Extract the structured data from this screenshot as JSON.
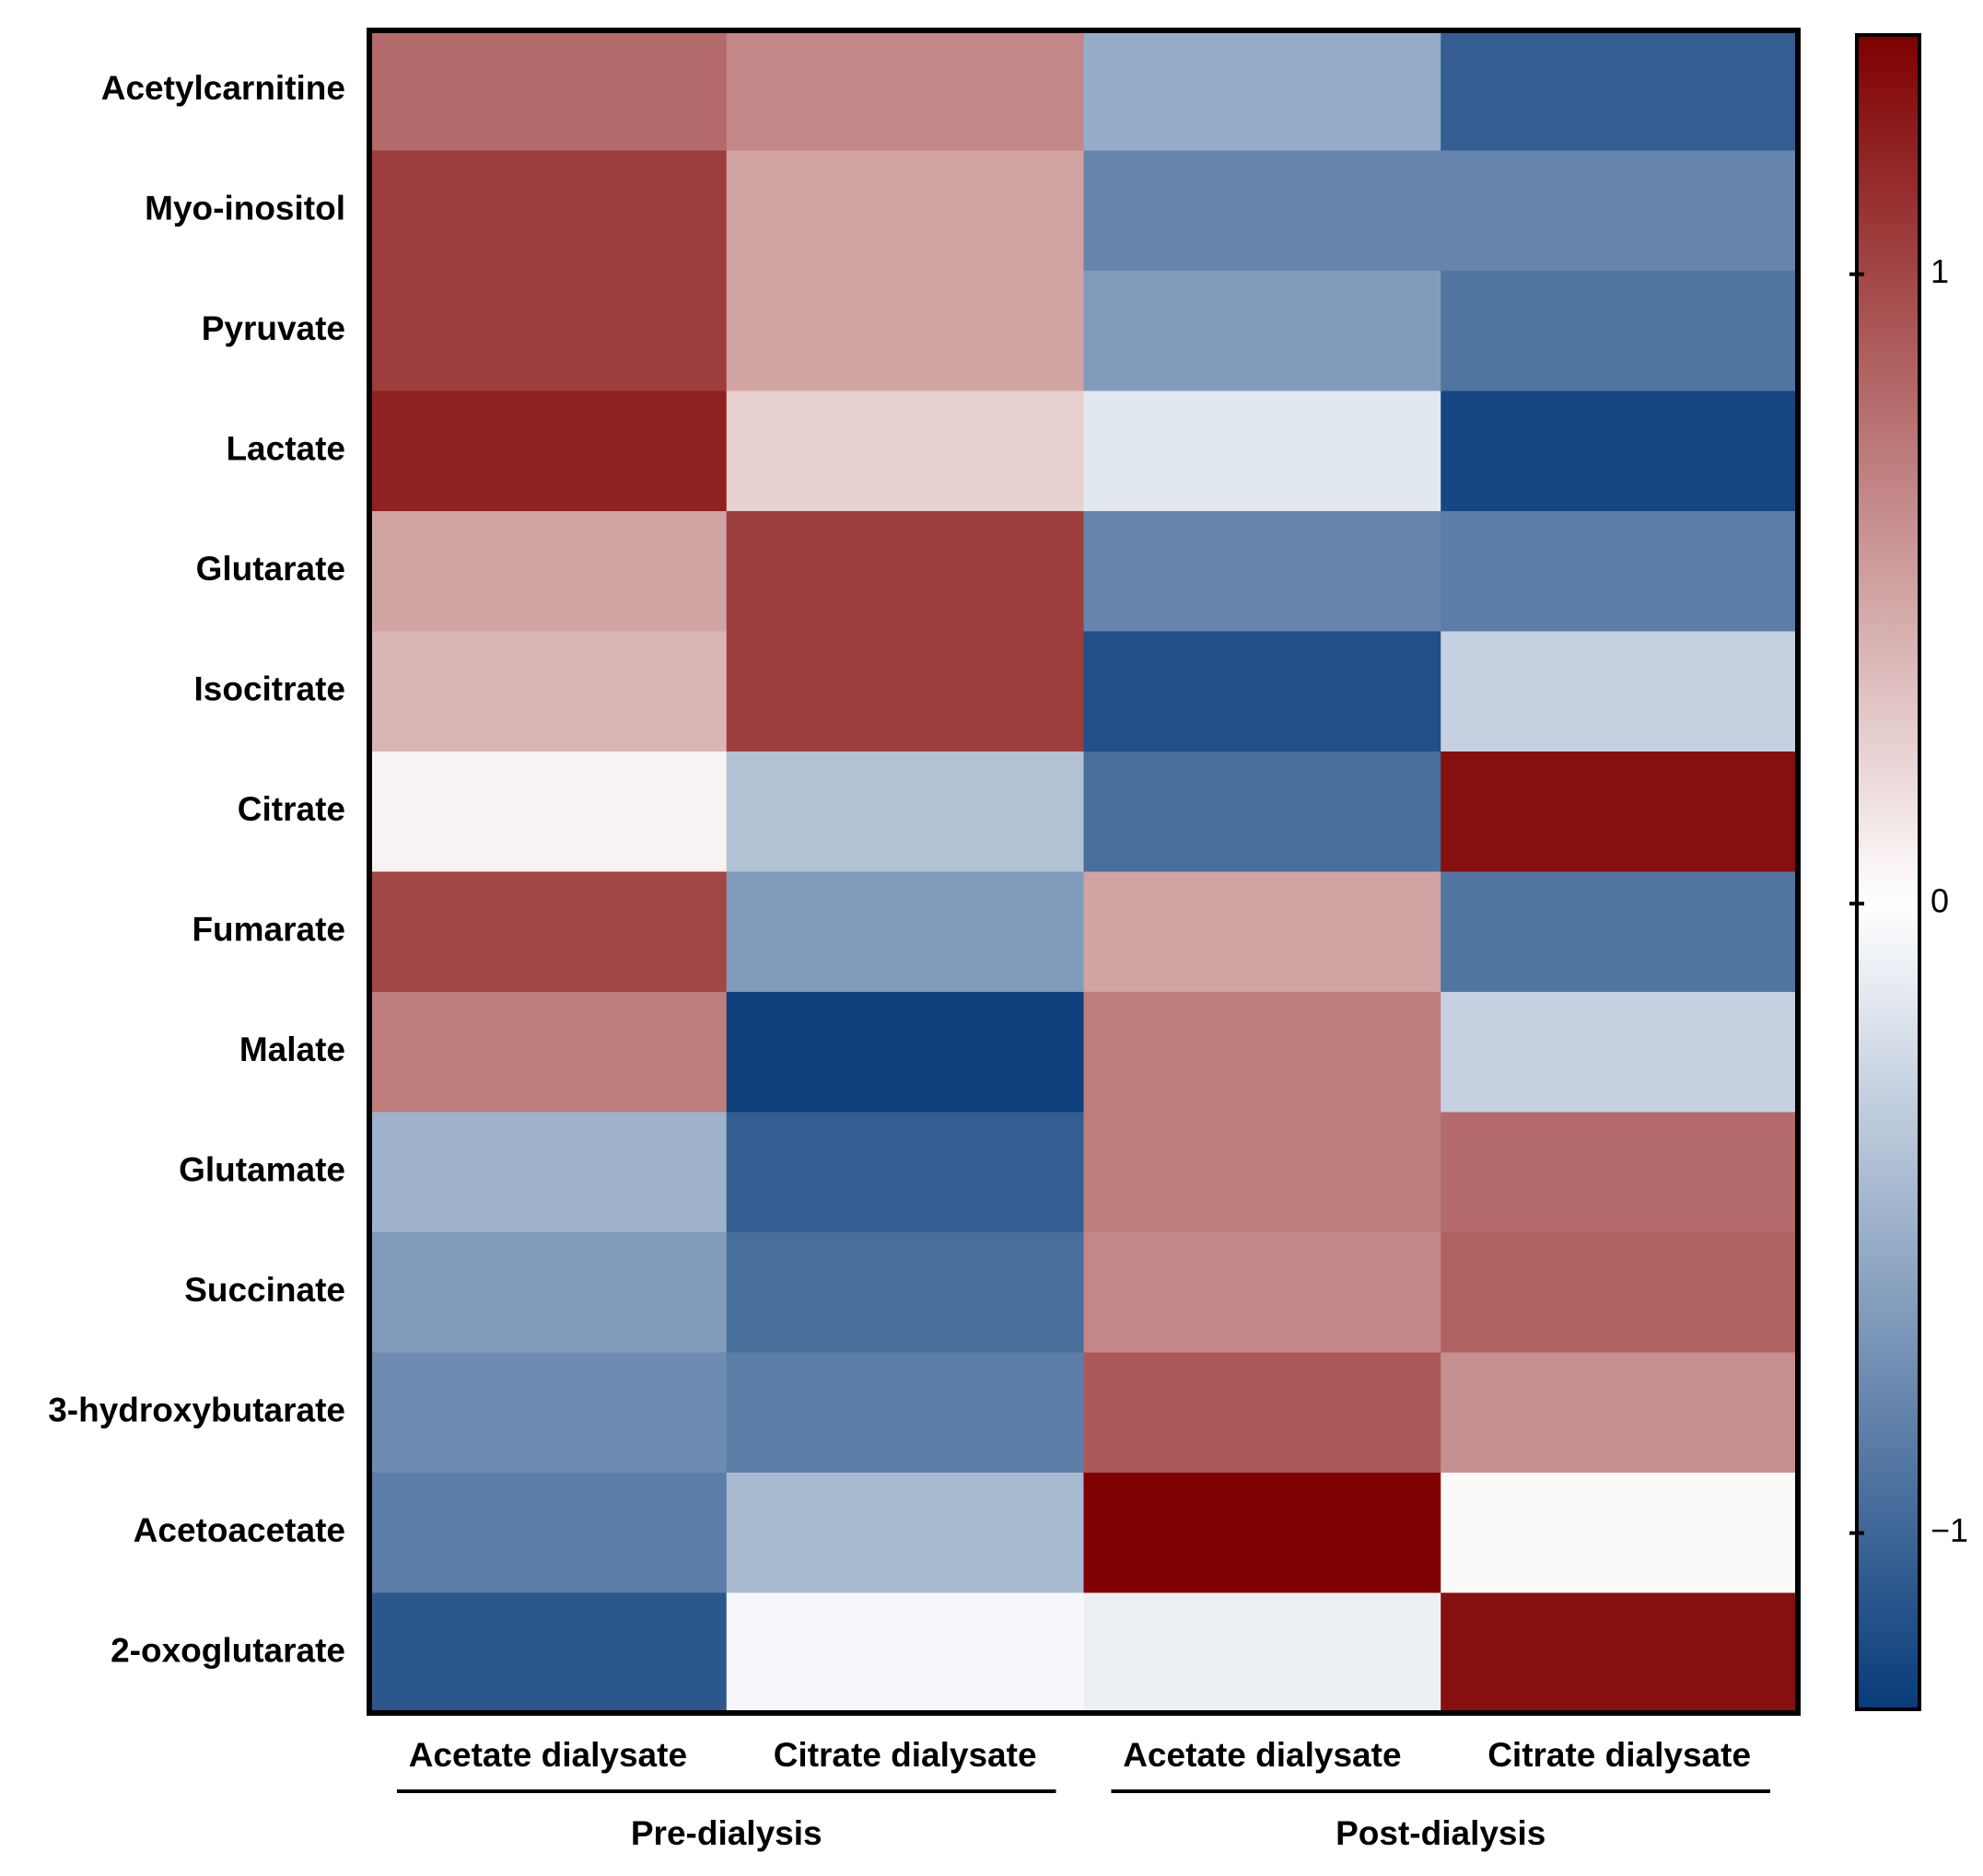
{
  "chart_data": {
    "type": "heatmap",
    "categories": [
      "Acetate dialysate",
      "Citrate dialysate",
      "Acetate dialysate",
      "Citrate dialysate"
    ],
    "groups": [
      "Pre-dialysis",
      "Post-dialysis"
    ],
    "rows": [
      "Acetylcarnitine",
      "Myo-inositol",
      "Pyruvate",
      "Lactate",
      "Glutarate",
      "Isocitrate",
      "Citrate",
      "Fumarate",
      "Malate",
      "Glutamate",
      "Succinate",
      "3-hydroxybutarate",
      "Acetoacetate",
      "2-oxoglutarate"
    ],
    "values": [
      [
        0.8,
        0.65,
        -0.55,
        -1.05
      ],
      [
        1.05,
        0.5,
        -0.8,
        -0.8
      ],
      [
        1.05,
        0.5,
        -0.65,
        -0.9
      ],
      [
        1.2,
        0.25,
        -0.15,
        -1.2
      ],
      [
        0.5,
        1.05,
        -0.8,
        -0.85
      ],
      [
        0.4,
        1.05,
        -1.15,
        -0.3
      ],
      [
        0.07,
        -0.4,
        -0.95,
        1.3
      ],
      [
        1.0,
        -0.65,
        0.5,
        -0.9
      ],
      [
        0.7,
        -1.25,
        0.7,
        -0.3
      ],
      [
        -0.5,
        -1.05,
        0.7,
        0.8
      ],
      [
        -0.65,
        -0.95,
        0.65,
        0.85
      ],
      [
        -0.75,
        -0.85,
        0.9,
        0.6
      ],
      [
        -0.85,
        -0.45,
        1.38,
        0.03
      ],
      [
        -1.1,
        -0.05,
        -0.1,
        1.3
      ]
    ],
    "colormap": [
      "#083b7a",
      "#ffffff",
      "#7f0000"
    ],
    "zlim": [
      -1.28,
      1.38
    ],
    "zticks": [
      1,
      0,
      {
        "value": -1,
        "label": "−1"
      }
    ]
  }
}
